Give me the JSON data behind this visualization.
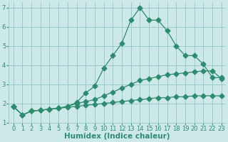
{
  "xlabel": "Humidex (Indice chaleur)",
  "bg_color": "#cce8e8",
  "grid_color": "#99cccc",
  "line_color": "#2e8b6e",
  "xlim": [
    -0.5,
    23.5
  ],
  "ylim": [
    1,
    7.3
  ],
  "xticks": [
    0,
    1,
    2,
    3,
    4,
    5,
    6,
    7,
    8,
    9,
    10,
    11,
    12,
    13,
    14,
    15,
    16,
    17,
    18,
    19,
    20,
    21,
    22,
    23
  ],
  "yticks": [
    1,
    2,
    3,
    4,
    5,
    6,
    7
  ],
  "line1_x": [
    0,
    1,
    2,
    3,
    4,
    5,
    6,
    7,
    8,
    9,
    10,
    11,
    12,
    13,
    14,
    15,
    16,
    17,
    18,
    19,
    20,
    21,
    22,
    23
  ],
  "line1_y": [
    1.85,
    1.4,
    1.6,
    1.65,
    1.7,
    1.75,
    1.8,
    1.85,
    1.9,
    1.95,
    2.0,
    2.05,
    2.1,
    2.15,
    2.2,
    2.25,
    2.3,
    2.3,
    2.35,
    2.35,
    2.4,
    2.4,
    2.4,
    2.4
  ],
  "line2_x": [
    0,
    1,
    2,
    3,
    4,
    5,
    6,
    7,
    8,
    9,
    10,
    11,
    12,
    13,
    14,
    15,
    16,
    17,
    18,
    19,
    20,
    21,
    22,
    23
  ],
  "line2_y": [
    1.85,
    1.4,
    1.6,
    1.65,
    1.7,
    1.75,
    1.85,
    2.0,
    2.1,
    2.2,
    2.4,
    2.6,
    2.8,
    3.0,
    3.2,
    3.3,
    3.4,
    3.5,
    3.55,
    3.6,
    3.65,
    3.7,
    3.7,
    3.3
  ],
  "line3_x": [
    0,
    1,
    2,
    3,
    4,
    5,
    6,
    7,
    8,
    9,
    10,
    11,
    12,
    13,
    14,
    15,
    16,
    17,
    18,
    19,
    20,
    21,
    22,
    23
  ],
  "line3_y": [
    1.85,
    1.4,
    1.6,
    1.65,
    1.7,
    1.75,
    1.85,
    2.05,
    2.55,
    2.9,
    3.85,
    4.5,
    5.15,
    6.35,
    7.0,
    6.35,
    6.35,
    5.8,
    5.0,
    4.5,
    4.5,
    4.05,
    3.35,
    3.35
  ],
  "marker_size": 3.5,
  "line_width": 0.9,
  "tick_fontsize": 6,
  "xlabel_fontsize": 7.5
}
